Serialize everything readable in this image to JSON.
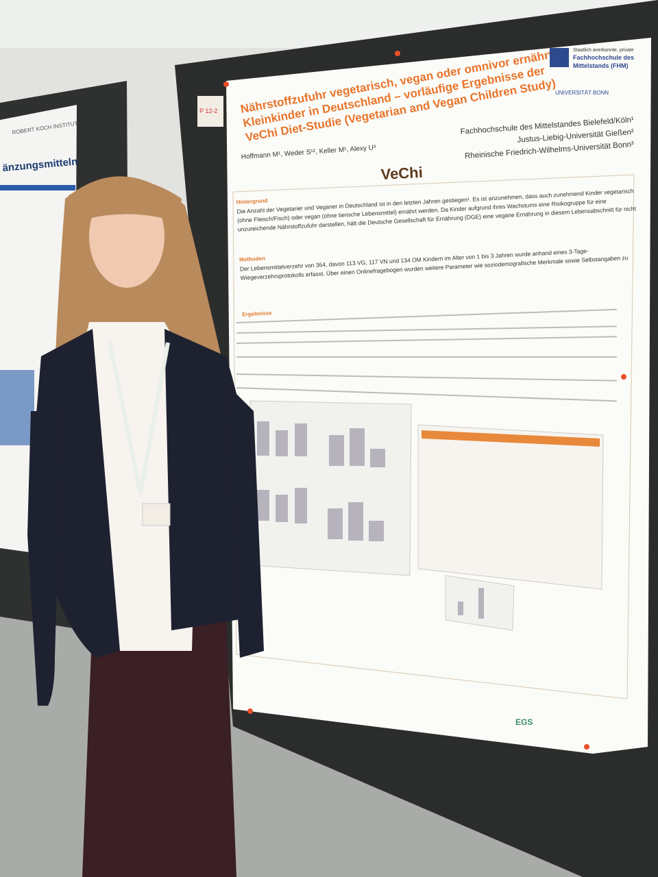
{
  "poster": {
    "board_label": "P 12-2",
    "title_lines": [
      "Nährstoffzufuhr vegetarisch, vegan oder omnivor ernährter",
      "Kleinkinder in Deutschland – vorläufige Ergebnisse der",
      "VeChi Diet-Studie (Vegetarian and Vegan Children Study)"
    ],
    "authors": "Hoffmann M¹, Weder S¹², Keller M¹, Alexy U³",
    "affiliations": [
      "Fachhochschule des Mittelstandes Bielefeld/Köln¹",
      "Justus-Liebig-Universität Gießen²",
      "Rheinische Friedrich-Wilhelms-Universität Bonn³"
    ],
    "logo": "VeChi",
    "institutions": [
      "Staatlich anerkannte, private",
      "Fachhochschule des",
      "Mittelstands (FHM)",
      "UNIVERSITÄT BONN"
    ],
    "sections": [
      "Hintergrund",
      "Methoden",
      "Ergebnisse"
    ],
    "background_text": [
      "Die Anzahl der Vegetarier und Veganer in Deutschland ist in den letzten Jahren gestiegen¹. Es ist anzunehmen, dass auch zunehmend Kinder vegetarisch",
      "(ohne Fleisch/Fisch) oder vegan (ohne tierische Lebensmittel) ernährt werden. Da Kinder aufgrund ihres Wachstums eine Risikogruppe für eine",
      "unzureichende Nährstoffzufuhr darstellen, hält die Deutsche Gesellschaft für Ernährung (DGE) eine vegane Ernährung in diesem Lebensabschnitt für nicht"
    ],
    "methods_text": [
      "Der Lebensmittelverzehr von 364, davon 113 VG, 117 VN und 134 OM Kindern im Alter von 1 bis 3 Jahren wurde anhand eines 3-Tage-",
      "Wiegeverzehrsprotokolls erfasst. Über einen Onlinefragebogen wurden weitere Parameter wie soziodemografische Merkmale sowie Selbstangaben zu"
    ],
    "sponsor": "EGS"
  },
  "left_poster": {
    "institute": "ROBERT KOCH INSTITUT",
    "title_fragment": "änzungsmitteln"
  }
}
